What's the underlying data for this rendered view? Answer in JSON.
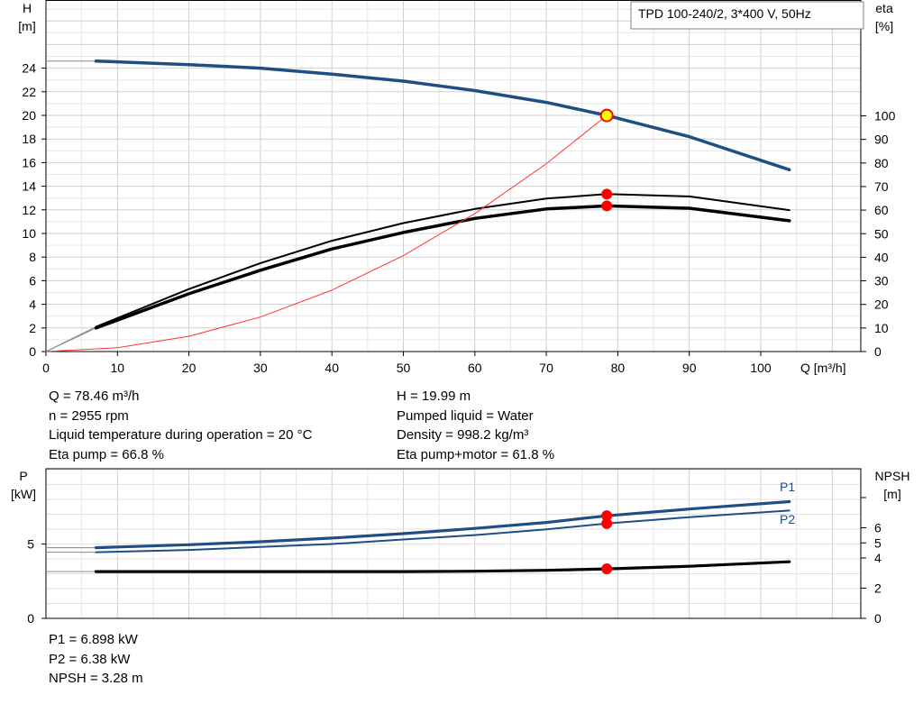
{
  "chart_data": [
    {
      "type": "line",
      "title": "TPD 100-240/2, 3*400 V, 50Hz",
      "xlabel": "Q [m³/h]",
      "ylabel_left": [
        "H",
        "[m]"
      ],
      "ylabel_right": [
        "eta",
        "[%]"
      ],
      "xlim": [
        0,
        110
      ],
      "ylim_left": [
        0,
        30
      ],
      "ylim_right": [
        0,
        100
      ],
      "x_ticks": [
        0,
        10,
        20,
        30,
        40,
        50,
        60,
        70,
        80,
        90,
        100
      ],
      "y_ticks_left": [
        0,
        2,
        4,
        6,
        8,
        10,
        12,
        14,
        16,
        18,
        20,
        22,
        24
      ],
      "y_ticks_right": [
        0,
        10,
        20,
        30,
        40,
        50,
        60,
        70,
        80,
        90,
        100
      ],
      "grid": true,
      "series": [
        {
          "id": "head",
          "axis": "left",
          "color": "#1f4e82",
          "x": [
            0,
            7,
            20,
            30,
            40,
            50,
            60,
            70,
            78.46,
            90,
            104
          ],
          "y": [
            24.6,
            24.6,
            24.3,
            24.0,
            23.5,
            22.9,
            22.1,
            21.1,
            19.99,
            18.2,
            15.4
          ]
        },
        {
          "id": "eta-pump",
          "axis": "right",
          "color": "#000000",
          "x": [
            0,
            7,
            20,
            30,
            40,
            50,
            60,
            70,
            78.46,
            90,
            104
          ],
          "y": [
            0,
            10.5,
            26.5,
            37.5,
            47,
            54.5,
            60.5,
            64.9,
            66.8,
            65.8,
            60
          ]
        },
        {
          "id": "eta-pump-motor",
          "axis": "right",
          "color": "#000000",
          "x": [
            0,
            7,
            20,
            30,
            40,
            50,
            60,
            70,
            78.46,
            90,
            104
          ],
          "y": [
            0,
            10,
            24.5,
            34.5,
            43.5,
            50.5,
            56.5,
            60.5,
            61.8,
            60.8,
            55.5
          ]
        },
        {
          "id": "system-curve",
          "axis": "left",
          "color": "#ff3333",
          "x": [
            0,
            10,
            20,
            30,
            40,
            50,
            60,
            70,
            78.46
          ],
          "y": [
            0,
            0.32,
            1.3,
            2.92,
            5.2,
            8.12,
            11.69,
            15.91,
            19.99
          ]
        }
      ],
      "markers": [
        {
          "axis": "left",
          "x": 78.46,
          "y": 19.99,
          "color": "#ffff00",
          "stroke": "#ff0000"
        },
        {
          "axis": "right",
          "x": 78.46,
          "y": 66.8,
          "color": "#ff0000"
        },
        {
          "axis": "right",
          "x": 78.46,
          "y": 61.8,
          "color": "#ff0000"
        }
      ]
    },
    {
      "type": "line",
      "xlim": [
        0,
        110
      ],
      "ylabel_left": [
        "P",
        "[kW]"
      ],
      "ylabel_right": [
        "NPSH",
        "[m]"
      ],
      "ylim_left": [
        0,
        9.2
      ],
      "ylim_right": [
        0,
        9.2
      ],
      "y_ticks_left": [
        0,
        5
      ],
      "y_ticks_right": [
        0,
        2,
        4,
        5,
        6
      ],
      "grid": true,
      "series": [
        {
          "id": "P1",
          "name": "P1",
          "axis": "left",
          "color": "#1f4e82",
          "x": [
            0,
            7,
            20,
            30,
            40,
            50,
            60,
            70,
            78.46,
            90,
            104
          ],
          "y": [
            4.75,
            4.75,
            4.95,
            5.15,
            5.4,
            5.7,
            6.05,
            6.45,
            6.898,
            7.35,
            7.85
          ]
        },
        {
          "id": "P2",
          "name": "P2",
          "axis": "left",
          "color": "#1f4e82",
          "x": [
            0,
            7,
            20,
            30,
            40,
            50,
            60,
            70,
            78.46,
            90,
            104
          ],
          "y": [
            4.45,
            4.45,
            4.6,
            4.8,
            5.0,
            5.3,
            5.6,
            5.98,
            6.38,
            6.8,
            7.25
          ]
        },
        {
          "id": "NPSH",
          "axis": "right",
          "color": "#000000",
          "x": [
            0,
            7,
            20,
            30,
            40,
            50,
            60,
            70,
            78.46,
            90,
            104
          ],
          "y": [
            3.1,
            3.1,
            3.1,
            3.1,
            3.1,
            3.1,
            3.12,
            3.18,
            3.28,
            3.45,
            3.75
          ]
        }
      ],
      "markers": [
        {
          "axis": "left",
          "x": 78.46,
          "y": 6.898,
          "color": "#ff0000"
        },
        {
          "axis": "left",
          "x": 78.46,
          "y": 6.38,
          "color": "#ff0000"
        },
        {
          "axis": "right",
          "x": 78.46,
          "y": 3.28,
          "color": "#ff0000"
        }
      ]
    }
  ],
  "info_left": [
    "Q = 78.46 m³/h",
    "n = 2955 rpm",
    "Liquid temperature during operation = 20 °C",
    "Eta pump = 66.8 %"
  ],
  "info_right": [
    "H = 19.99 m",
    "Pumped liquid = Water",
    "Density = 998.2 kg/m³",
    "Eta pump+motor = 61.8 %"
  ],
  "info_bottom": [
    "P1 = 6.898 kW",
    "P2 = 6.38 kW",
    "NPSH = 3.28 m"
  ]
}
